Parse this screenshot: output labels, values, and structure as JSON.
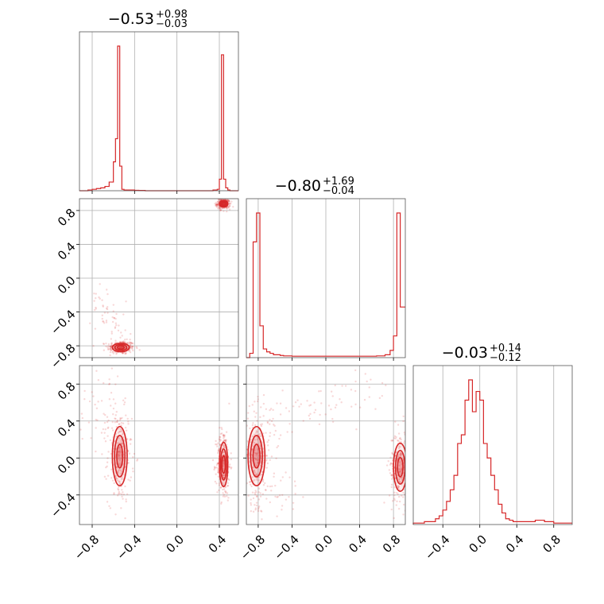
{
  "chart_data": {
    "type": "corner",
    "color": "#d62728",
    "grid": true,
    "titles": [
      {
        "median": "−0.53",
        "plus": "+0.98",
        "minus": "−0.03"
      },
      {
        "median": "−0.80",
        "plus": "+1.69",
        "minus": "−0.04"
      },
      {
        "median": "−0.03",
        "plus": "+0.14",
        "minus": "−0.12"
      }
    ],
    "axes": {
      "p0": {
        "range": [
          -0.92,
          0.58
        ],
        "ticks": [
          -0.8,
          -0.4,
          0.0,
          0.4
        ],
        "tick_labels": [
          "−0.8",
          "−0.4",
          "0.0",
          "0.4"
        ]
      },
      "p1": {
        "range": [
          -0.94,
          0.94
        ],
        "ticks": [
          -0.8,
          -0.4,
          0.0,
          0.4,
          0.8
        ],
        "tick_labels": [
          "−0.8",
          "−0.4",
          "0.0",
          "0.4",
          "0.8"
        ]
      },
      "p2": {
        "range": [
          -0.72,
          1.0
        ],
        "ticks": [
          -0.4,
          0.0,
          0.4,
          0.8
        ],
        "tick_labels": [
          "−0.4",
          "0.0",
          "0.4",
          "0.8"
        ]
      }
    },
    "hist_p0": {
      "x": [
        -0.92,
        -0.88,
        -0.84,
        -0.8,
        -0.76,
        -0.72,
        -0.68,
        -0.64,
        -0.6,
        -0.58,
        -0.56,
        -0.54,
        -0.52,
        -0.5,
        -0.48,
        -0.44,
        -0.4,
        -0.36,
        -0.3,
        0.34,
        0.38,
        0.4,
        0.42,
        0.44,
        0.46,
        0.48,
        0.5,
        0.54
      ],
      "y": [
        0,
        0,
        0.005,
        0.01,
        0.015,
        0.02,
        0.03,
        0.06,
        0.2,
        0.36,
        1.0,
        0.17,
        0.01,
        0.005,
        0.005,
        0.005,
        0.003,
        0.002,
        0,
        0.005,
        0.01,
        0.08,
        0.94,
        0.08,
        0.02,
        0.005,
        0,
        0
      ]
    },
    "hist_p1": {
      "x": [
        -0.94,
        -0.9,
        -0.86,
        -0.82,
        -0.78,
        -0.74,
        -0.7,
        -0.66,
        -0.62,
        -0.58,
        -0.54,
        -0.5,
        -0.4,
        -0.2,
        0.0,
        0.2,
        0.4,
        0.6,
        0.7,
        0.76,
        0.8,
        0.84,
        0.88,
        0.92
      ],
      "y": [
        0,
        0.03,
        0.8,
        1.0,
        0.22,
        0.06,
        0.04,
        0.03,
        0.02,
        0.02,
        0.015,
        0.012,
        0.01,
        0.01,
        0.01,
        0.01,
        0.01,
        0.012,
        0.02,
        0.05,
        0.15,
        1.0,
        0.35,
        0.35
      ]
    },
    "hist_p2": {
      "x": [
        -0.72,
        -0.66,
        -0.6,
        -0.54,
        -0.48,
        -0.44,
        -0.4,
        -0.36,
        -0.32,
        -0.28,
        -0.24,
        -0.2,
        -0.16,
        -0.12,
        -0.08,
        -0.04,
        0.0,
        0.04,
        0.08,
        0.12,
        0.16,
        0.2,
        0.24,
        0.28,
        0.32,
        0.36,
        0.4,
        0.5,
        0.6,
        0.7,
        0.8,
        0.9
      ],
      "y": [
        0.01,
        0.01,
        0.02,
        0.02,
        0.04,
        0.06,
        0.1,
        0.16,
        0.24,
        0.34,
        0.56,
        0.62,
        0.86,
        1.0,
        0.78,
        0.92,
        0.86,
        0.56,
        0.46,
        0.34,
        0.24,
        0.14,
        0.08,
        0.04,
        0.03,
        0.02,
        0.02,
        0.02,
        0.03,
        0.02,
        0.01,
        0.01
      ]
    },
    "modes_p1_vs_p0": [
      {
        "x": -0.53,
        "y": -0.82,
        "sx": 0.04,
        "sy": 0.025
      },
      {
        "x": 0.44,
        "y": 0.88,
        "sx": 0.02,
        "sy": 0.02
      }
    ],
    "modes_p2_vs_p0": [
      {
        "x": -0.54,
        "y": 0.02,
        "sx": 0.035,
        "sy": 0.16
      },
      {
        "x": 0.44,
        "y": -0.07,
        "sx": 0.02,
        "sy": 0.12
      }
    ],
    "modes_p2_vs_p1": [
      {
        "x": -0.82,
        "y": 0.02,
        "sx": 0.05,
        "sy": 0.16
      },
      {
        "x": 0.88,
        "y": -0.1,
        "sx": 0.04,
        "sy": 0.13
      }
    ]
  }
}
